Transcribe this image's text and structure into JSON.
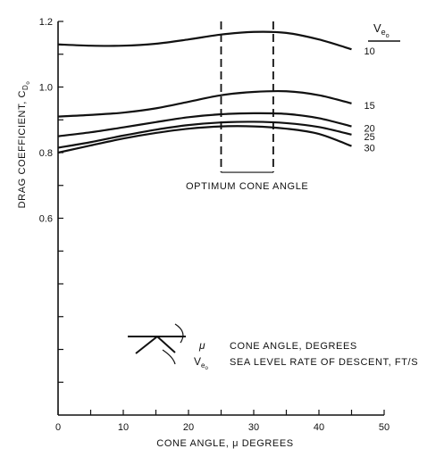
{
  "chart_data": {
    "type": "line",
    "ylabel_main": "DRAG COEFFICIENT, C",
    "ylabel_sub": "D",
    "ylabel_subsub": "o",
    "xlabel": "CONE ANGLE, μ  DEGREES",
    "xlim": [
      0,
      50
    ],
    "ylim": [
      0.0,
      1.2
    ],
    "x_ticks": [
      0,
      5,
      10,
      15,
      20,
      25,
      30,
      35,
      40,
      45,
      50
    ],
    "x_tick_labels": [
      {
        "x": 0,
        "label": "0"
      },
      {
        "x": 10,
        "label": "10"
      },
      {
        "x": 20,
        "label": "20"
      },
      {
        "x": 30,
        "label": "30"
      },
      {
        "x": 40,
        "label": "40"
      },
      {
        "x": 50,
        "label": "50"
      }
    ],
    "y_ticks": [
      0.1,
      0.2,
      0.3,
      0.4,
      0.5,
      0.6,
      0.7,
      0.8,
      0.9,
      1.0,
      1.1,
      1.2
    ],
    "y_tick_labels": [
      {
        "y": 0.6,
        "label": "0.6"
      },
      {
        "y": 0.8,
        "label": "0.8"
      },
      {
        "y": 1.0,
        "label": "1.0"
      },
      {
        "y": 1.2,
        "label": "1.2"
      }
    ],
    "legend_header": "V",
    "legend_header_sub": "e",
    "legend_header_subsub": "o",
    "series": [
      {
        "name": "10",
        "x": [
          0,
          5,
          10,
          15,
          20,
          25,
          30,
          35,
          40,
          45
        ],
        "y": [
          1.13,
          1.126,
          1.126,
          1.132,
          1.145,
          1.16,
          1.168,
          1.165,
          1.145,
          1.115
        ]
      },
      {
        "name": "15",
        "x": [
          0,
          5,
          10,
          15,
          20,
          25,
          30,
          35,
          40,
          45
        ],
        "y": [
          0.91,
          0.915,
          0.922,
          0.935,
          0.955,
          0.975,
          0.985,
          0.987,
          0.975,
          0.95
        ]
      },
      {
        "name": "20",
        "x": [
          0,
          5,
          10,
          15,
          20,
          25,
          30,
          35,
          40,
          45
        ],
        "y": [
          0.85,
          0.862,
          0.877,
          0.893,
          0.908,
          0.917,
          0.92,
          0.918,
          0.905,
          0.88
        ]
      },
      {
        "name": "25",
        "x": [
          0,
          5,
          10,
          15,
          20,
          25,
          30,
          35,
          40,
          45
        ],
        "y": [
          0.815,
          0.832,
          0.852,
          0.87,
          0.884,
          0.892,
          0.894,
          0.89,
          0.878,
          0.855
        ]
      },
      {
        "name": "30",
        "x": [
          0,
          5,
          10,
          15,
          20,
          25,
          30,
          35,
          40,
          45
        ],
        "y": [
          0.8,
          0.822,
          0.843,
          0.86,
          0.873,
          0.88,
          0.88,
          0.873,
          0.857,
          0.82
        ]
      }
    ],
    "optimum": {
      "x_start": 25,
      "x_end": 33,
      "label": "OPTIMUM CONE ANGLE"
    },
    "key": {
      "mu_symbol": "μ",
      "mu_text": "CONE ANGLE, DEGREES",
      "v_symbol": "V",
      "v_sub": "e",
      "v_subsub": "o",
      "v_text": "SEA LEVEL RATE OF DESCENT, FT/S"
    }
  }
}
